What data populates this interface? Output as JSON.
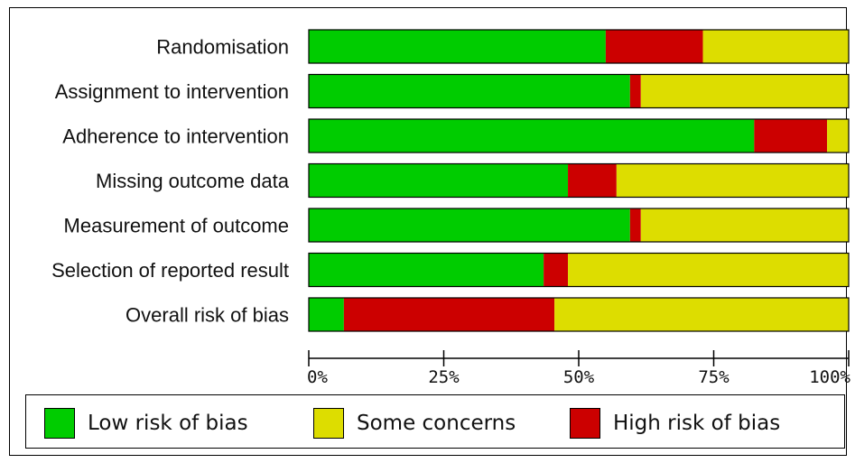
{
  "chart_data": {
    "type": "bar",
    "orientation": "horizontal",
    "stacked": true,
    "percent": true,
    "categories": [
      "Randomisation",
      "Assignment to intervention",
      "Adherence to intervention",
      "Missing outcome data",
      "Measurement of outcome",
      "Selection of reported result",
      "Overall risk of bias"
    ],
    "series": [
      {
        "name": "Low risk of bias",
        "color": "#00cc00",
        "values": [
          55,
          59.5,
          82.5,
          48,
          59.5,
          43.5,
          6.5
        ]
      },
      {
        "name": "High risk of bias",
        "color": "#cc0000",
        "values": [
          18,
          2,
          13.5,
          9,
          2,
          4.5,
          39
        ]
      },
      {
        "name": "Some concerns",
        "color": "#dddd00",
        "values": [
          27,
          38.5,
          4,
          43,
          38.5,
          52,
          54.5
        ]
      }
    ],
    "xlim": [
      0,
      100
    ],
    "xticks": [
      "0%",
      "25%",
      "50%",
      "75%",
      "100%"
    ],
    "grid": false,
    "legend_position": "bottom",
    "legend_order": [
      "Low risk of bias",
      "Some concerns",
      "High risk of bias"
    ]
  }
}
